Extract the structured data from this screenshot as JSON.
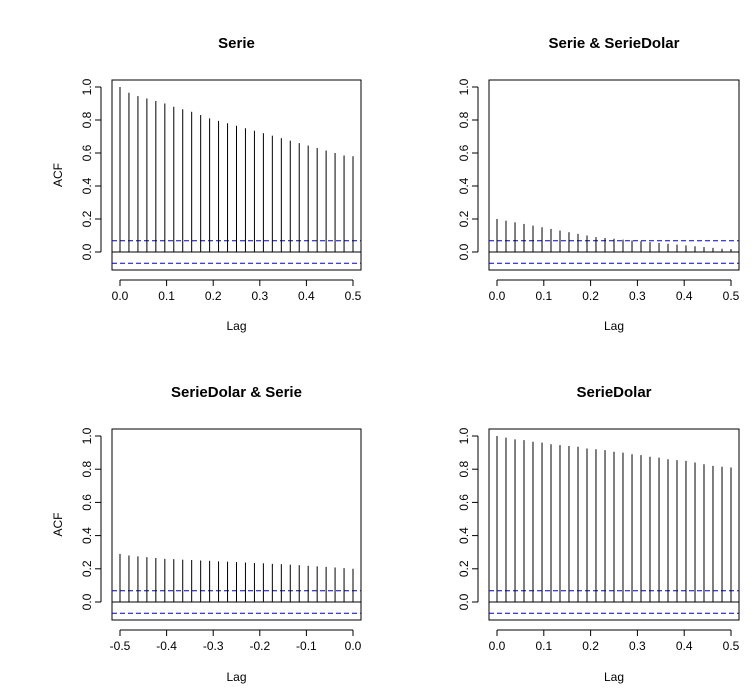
{
  "chart_data": [
    {
      "type": "bar",
      "title": "Serie",
      "xlabel": "Lag",
      "ylabel": "ACF",
      "xlim": [
        0.0,
        0.5
      ],
      "ylim": [
        -0.05,
        1.0
      ],
      "x_ticks": [
        "0.0",
        "0.1",
        "0.2",
        "0.3",
        "0.4",
        "0.5"
      ],
      "y_ticks": [
        "0.0",
        "0.2",
        "0.4",
        "0.6",
        "0.8",
        "1.0"
      ],
      "ci": [
        0.068,
        -0.068
      ],
      "lags": [
        0.0,
        0.0192,
        0.0385,
        0.0577,
        0.0769,
        0.0962,
        0.1154,
        0.1346,
        0.1538,
        0.1731,
        0.1923,
        0.2115,
        0.2308,
        0.25,
        0.2692,
        0.2885,
        0.3077,
        0.3269,
        0.3462,
        0.3654,
        0.3846,
        0.4038,
        0.4231,
        0.4423,
        0.4615,
        0.4808,
        0.5
      ],
      "values": [
        1.0,
        0.965,
        0.945,
        0.93,
        0.915,
        0.9,
        0.88,
        0.865,
        0.85,
        0.83,
        0.81,
        0.795,
        0.78,
        0.765,
        0.75,
        0.735,
        0.72,
        0.705,
        0.69,
        0.675,
        0.66,
        0.645,
        0.63,
        0.615,
        0.6,
        0.585,
        0.58
      ]
    },
    {
      "type": "bar",
      "title": "Serie & SerieDolar",
      "xlabel": "Lag",
      "ylabel": "",
      "xlim": [
        0.0,
        0.5
      ],
      "ylim": [
        -0.05,
        1.0
      ],
      "x_ticks": [
        "0.0",
        "0.1",
        "0.2",
        "0.3",
        "0.4",
        "0.5"
      ],
      "y_ticks": [
        "0.0",
        "0.2",
        "0.4",
        "0.6",
        "0.8",
        "1.0"
      ],
      "ci": [
        0.068,
        -0.068
      ],
      "lags": [
        0.0,
        0.0192,
        0.0385,
        0.0577,
        0.0769,
        0.0962,
        0.1154,
        0.1346,
        0.1538,
        0.1731,
        0.1923,
        0.2115,
        0.2308,
        0.25,
        0.2692,
        0.2885,
        0.3077,
        0.3269,
        0.3462,
        0.3654,
        0.3846,
        0.4038,
        0.4231,
        0.4423,
        0.4615,
        0.4808,
        0.5
      ],
      "values": [
        0.2,
        0.19,
        0.18,
        0.17,
        0.16,
        0.15,
        0.14,
        0.13,
        0.12,
        0.11,
        0.1,
        0.09,
        0.085,
        0.08,
        0.075,
        0.07,
        0.065,
        0.06,
        0.055,
        0.05,
        0.045,
        0.04,
        0.035,
        0.03,
        0.025,
        0.02,
        0.018
      ]
    },
    {
      "type": "bar",
      "title": "SerieDolar & Serie",
      "xlabel": "Lag",
      "ylabel": "ACF",
      "xlim": [
        -0.5,
        0.0
      ],
      "ylim": [
        -0.05,
        1.0
      ],
      "x_ticks": [
        "-0.5",
        "-0.4",
        "-0.3",
        "-0.2",
        "-0.1",
        "0.0"
      ],
      "y_ticks": [
        "0.0",
        "0.2",
        "0.4",
        "0.6",
        "0.8",
        "1.0"
      ],
      "ci": [
        0.068,
        -0.068
      ],
      "lags": [
        -0.5,
        -0.4808,
        -0.4615,
        -0.4423,
        -0.4231,
        -0.4038,
        -0.3846,
        -0.3654,
        -0.3462,
        -0.3269,
        -0.3077,
        -0.2885,
        -0.2692,
        -0.25,
        -0.2308,
        -0.2115,
        -0.1923,
        -0.1731,
        -0.1538,
        -0.1346,
        -0.1154,
        -0.0962,
        -0.0769,
        -0.0577,
        -0.0385,
        -0.0192,
        0.0
      ],
      "values": [
        0.29,
        0.28,
        0.275,
        0.27,
        0.265,
        0.26,
        0.258,
        0.255,
        0.253,
        0.25,
        0.248,
        0.245,
        0.243,
        0.24,
        0.238,
        0.235,
        0.233,
        0.23,
        0.228,
        0.225,
        0.222,
        0.218,
        0.215,
        0.212,
        0.208,
        0.204,
        0.2
      ]
    },
    {
      "type": "bar",
      "title": "SerieDolar",
      "xlabel": "Lag",
      "ylabel": "",
      "xlim": [
        0.0,
        0.5
      ],
      "ylim": [
        -0.05,
        1.0
      ],
      "x_ticks": [
        "0.0",
        "0.1",
        "0.2",
        "0.3",
        "0.4",
        "0.5"
      ],
      "y_ticks": [
        "0.0",
        "0.2",
        "0.4",
        "0.6",
        "0.8",
        "1.0"
      ],
      "ci": [
        0.068,
        -0.068
      ],
      "lags": [
        0.0,
        0.0192,
        0.0385,
        0.0577,
        0.0769,
        0.0962,
        0.1154,
        0.1346,
        0.1538,
        0.1731,
        0.1923,
        0.2115,
        0.2308,
        0.25,
        0.2692,
        0.2885,
        0.3077,
        0.3269,
        0.3462,
        0.3654,
        0.3846,
        0.4038,
        0.4231,
        0.4423,
        0.4615,
        0.4808,
        0.5
      ],
      "values": [
        1.0,
        0.99,
        0.98,
        0.975,
        0.965,
        0.96,
        0.95,
        0.945,
        0.94,
        0.935,
        0.925,
        0.92,
        0.915,
        0.905,
        0.9,
        0.89,
        0.885,
        0.875,
        0.87,
        0.86,
        0.855,
        0.85,
        0.84,
        0.83,
        0.82,
        0.815,
        0.81
      ]
    }
  ],
  "colors": {
    "bars": "#000000",
    "ci_line": "#0000cc",
    "axis": "#000000",
    "background": "#ffffff"
  }
}
